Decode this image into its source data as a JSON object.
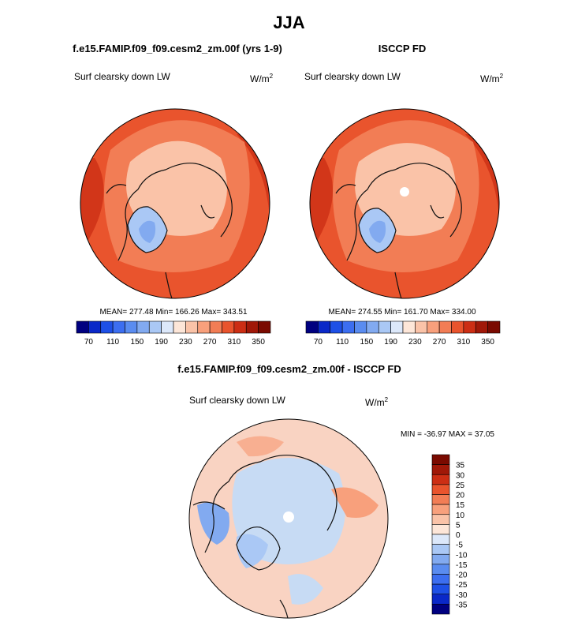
{
  "main_title": "JJA",
  "colors": {
    "ocean_warm": "#ee5a32",
    "deep_red": "#c72a14",
    "mid_red": "#f07a50",
    "land_pale": "#f8c3a8",
    "ice_blue": "#8aa6e8",
    "diff_pale_red": "#f9d3c2",
    "diff_pale_blue": "#c7dbf4",
    "coast": "#111111"
  },
  "chart_data": [
    {
      "type": "polar_map",
      "panel": "model",
      "title": "f.e15.FAMIP.f09_f09.cesm2_zm.00f (yrs 1-9)",
      "variable_label": "Surf clearsky down LW",
      "units_label": "W/m",
      "units_exponent": "2",
      "stats_text": "MEAN= 277.48  Min= 166.26  Max= 343.51",
      "stats": {
        "mean": 277.48,
        "min": 166.26,
        "max": 343.51
      },
      "colorbar": {
        "levels": [
          70,
          90,
          110,
          130,
          150,
          170,
          190,
          210,
          230,
          250,
          270,
          290,
          310,
          330,
          350
        ],
        "tick_labels": [
          "70",
          "110",
          "150",
          "190",
          "230",
          "270",
          "310",
          "350"
        ],
        "colors": [
          "#000080",
          "#0a28c8",
          "#1e50e6",
          "#3c6ef0",
          "#5a8cf0",
          "#82aaf0",
          "#aac8f5",
          "#dce8fa",
          "#fde6d8",
          "#fac3a8",
          "#f8a07c",
          "#f27d55",
          "#e9542d",
          "#cc2e14",
          "#a01808",
          "#7a0a00"
        ]
      }
    },
    {
      "type": "polar_map",
      "panel": "obs",
      "title": "ISCCP FD",
      "variable_label": "Surf clearsky down LW",
      "units_label": "W/m",
      "units_exponent": "2",
      "stats_text": "MEAN= 274.55  Min= 161.70  Max= 334.00",
      "stats": {
        "mean": 274.55,
        "min": 161.7,
        "max": 334.0
      },
      "colorbar": {
        "levels": [
          70,
          90,
          110,
          130,
          150,
          170,
          190,
          210,
          230,
          250,
          270,
          290,
          310,
          330,
          350
        ],
        "tick_labels": [
          "70",
          "110",
          "150",
          "190",
          "230",
          "270",
          "310",
          "350"
        ],
        "colors": [
          "#000080",
          "#0a28c8",
          "#1e50e6",
          "#3c6ef0",
          "#5a8cf0",
          "#82aaf0",
          "#aac8f5",
          "#dce8fa",
          "#fde6d8",
          "#fac3a8",
          "#f8a07c",
          "#f27d55",
          "#e9542d",
          "#cc2e14",
          "#a01808",
          "#7a0a00"
        ]
      }
    },
    {
      "type": "polar_map",
      "panel": "difference",
      "title": "f.e15.FAMIP.f09_f09.cesm2_zm.00f - ISCCP FD",
      "variable_label": "Surf clearsky down LW",
      "units_label": "W/m",
      "units_exponent": "2",
      "stats_text": "MIN = -36.97 MAX =  37.05",
      "stats": {
        "min": -36.97,
        "max": 37.05
      },
      "colorbar": {
        "orientation": "vertical",
        "tick_labels": [
          "35",
          "30",
          "25",
          "20",
          "15",
          "10",
          "5",
          "0",
          "-5",
          "-10",
          "-15",
          "-20",
          "-25",
          "-30",
          "-35"
        ],
        "colors": [
          "#7a0a00",
          "#a01808",
          "#cc2e14",
          "#e9542d",
          "#f27d55",
          "#f8a07c",
          "#fac3a8",
          "#fde6d8",
          "#dce8fa",
          "#aac8f5",
          "#82aaf0",
          "#5a8cf0",
          "#3c6ef0",
          "#1e50e6",
          "#0a28c8",
          "#000080"
        ]
      }
    }
  ]
}
